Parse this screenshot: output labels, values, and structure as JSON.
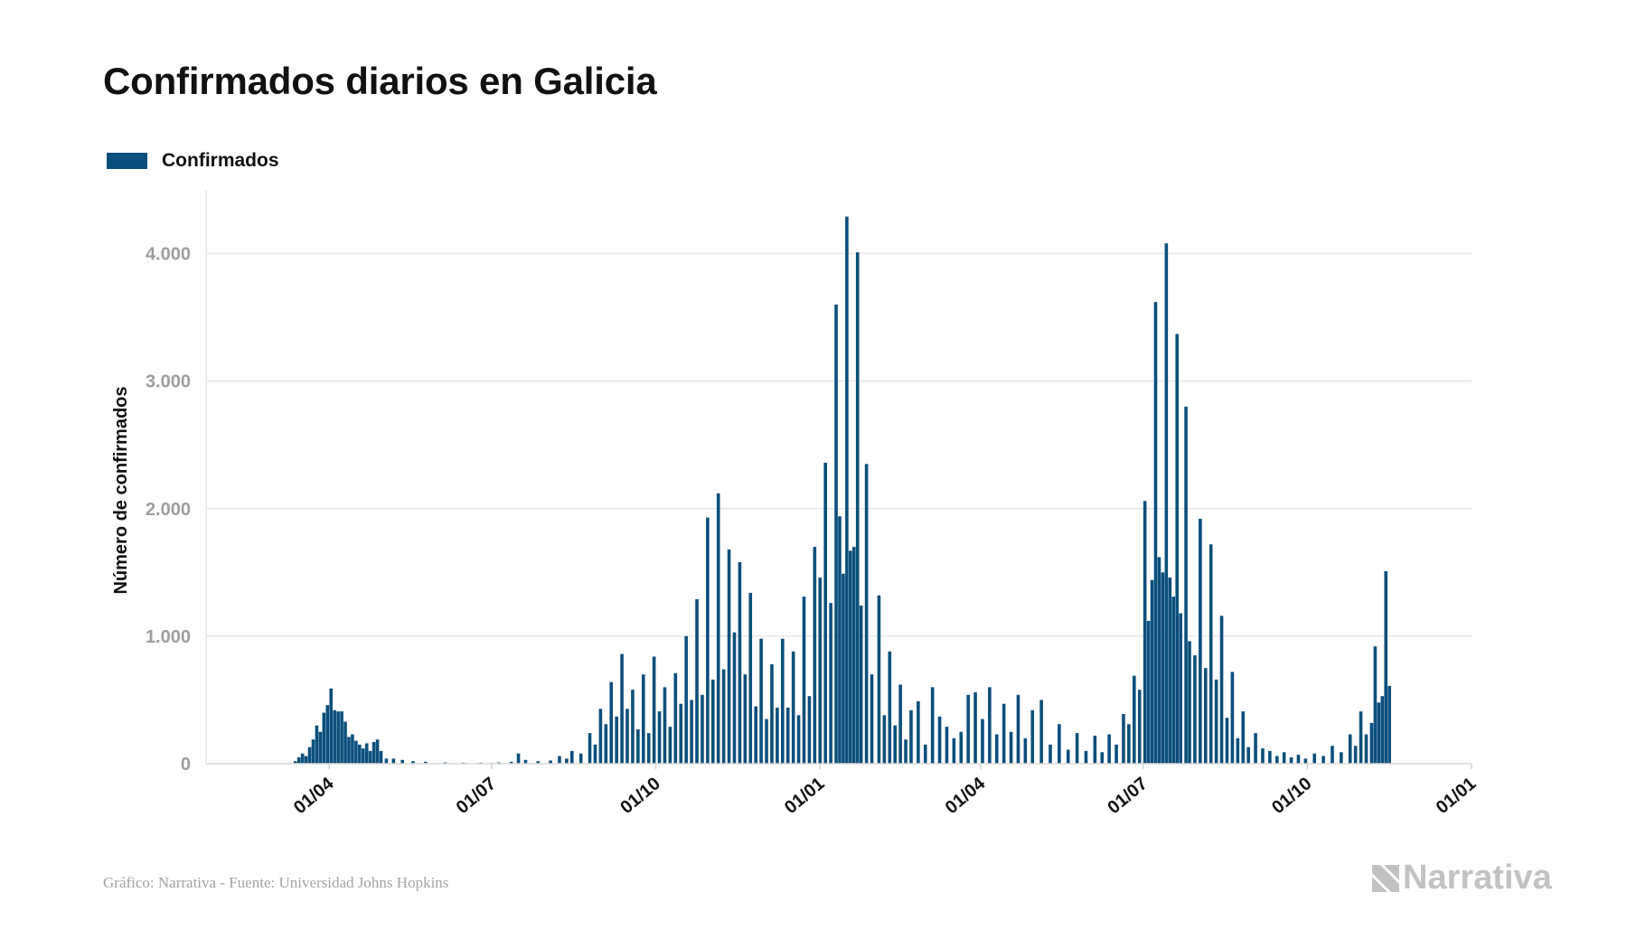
{
  "title": "Confirmados diarios en Galicia",
  "legend": {
    "label": "Confirmados",
    "color": "#0b4f7c"
  },
  "footer": {
    "source": "Gráfico: Narrativa - Fuente: Universidad Johns Hopkins"
  },
  "logo": {
    "text": "Narrativa",
    "icon": "narrativa-logo-icon"
  },
  "chart_data": {
    "type": "bar",
    "title": "Confirmados diarios en Galicia",
    "ylabel": "Número de confirmados",
    "xlabel": "",
    "ylim": [
      0,
      4500
    ],
    "yticks": [
      0,
      1000,
      2000,
      3000,
      4000
    ],
    "ytick_labels": [
      "0",
      "1.000",
      "2.000",
      "3.000",
      "4.000"
    ],
    "xlim": [
      "2020-01-23",
      "2022-01-01"
    ],
    "xticks": [
      "2020-04-01",
      "2020-07-01",
      "2020-10-01",
      "2021-01-01",
      "2021-04-01",
      "2021-07-01",
      "2021-10-01",
      "2022-01-01"
    ],
    "xtick_labels": [
      "01/04",
      "01/07",
      "01/10",
      "01/01",
      "01/04",
      "01/07",
      "01/10",
      "01/01"
    ],
    "grid": true,
    "legend_position": "top-left",
    "series": [
      {
        "name": "Confirmados",
        "color": "#0b4f7c",
        "points": [
          [
            "2020-03-10",
            5
          ],
          [
            "2020-03-13",
            20
          ],
          [
            "2020-03-15",
            50
          ],
          [
            "2020-03-17",
            80
          ],
          [
            "2020-03-19",
            60
          ],
          [
            "2020-03-21",
            130
          ],
          [
            "2020-03-23",
            190
          ],
          [
            "2020-03-25",
            300
          ],
          [
            "2020-03-27",
            250
          ],
          [
            "2020-03-29",
            400
          ],
          [
            "2020-03-31",
            460
          ],
          [
            "2020-04-02",
            590
          ],
          [
            "2020-04-04",
            420
          ],
          [
            "2020-04-06",
            410
          ],
          [
            "2020-04-08",
            410
          ],
          [
            "2020-04-10",
            330
          ],
          [
            "2020-04-12",
            210
          ],
          [
            "2020-04-14",
            230
          ],
          [
            "2020-04-16",
            180
          ],
          [
            "2020-04-18",
            150
          ],
          [
            "2020-04-20",
            120
          ],
          [
            "2020-04-22",
            160
          ],
          [
            "2020-04-24",
            100
          ],
          [
            "2020-04-26",
            170
          ],
          [
            "2020-04-28",
            190
          ],
          [
            "2020-04-30",
            100
          ],
          [
            "2020-05-03",
            40
          ],
          [
            "2020-05-07",
            40
          ],
          [
            "2020-05-12",
            30
          ],
          [
            "2020-05-18",
            20
          ],
          [
            "2020-05-25",
            15
          ],
          [
            "2020-06-05",
            10
          ],
          [
            "2020-06-15",
            8
          ],
          [
            "2020-06-25",
            8
          ],
          [
            "2020-07-05",
            10
          ],
          [
            "2020-07-12",
            15
          ],
          [
            "2020-07-16",
            80
          ],
          [
            "2020-07-20",
            30
          ],
          [
            "2020-07-27",
            20
          ],
          [
            "2020-08-03",
            25
          ],
          [
            "2020-08-08",
            60
          ],
          [
            "2020-08-12",
            40
          ],
          [
            "2020-08-15",
            100
          ],
          [
            "2020-08-20",
            80
          ],
          [
            "2020-08-25",
            240
          ],
          [
            "2020-08-28",
            150
          ],
          [
            "2020-08-31",
            430
          ],
          [
            "2020-09-03",
            310
          ],
          [
            "2020-09-06",
            640
          ],
          [
            "2020-09-09",
            370
          ],
          [
            "2020-09-12",
            860
          ],
          [
            "2020-09-15",
            430
          ],
          [
            "2020-09-18",
            580
          ],
          [
            "2020-09-21",
            270
          ],
          [
            "2020-09-24",
            700
          ],
          [
            "2020-09-27",
            240
          ],
          [
            "2020-09-30",
            840
          ],
          [
            "2020-10-03",
            410
          ],
          [
            "2020-10-06",
            600
          ],
          [
            "2020-10-09",
            290
          ],
          [
            "2020-10-12",
            710
          ],
          [
            "2020-10-15",
            470
          ],
          [
            "2020-10-18",
            1000
          ],
          [
            "2020-10-21",
            500
          ],
          [
            "2020-10-24",
            1290
          ],
          [
            "2020-10-27",
            540
          ],
          [
            "2020-10-30",
            1930
          ],
          [
            "2020-11-02",
            660
          ],
          [
            "2020-11-05",
            2120
          ],
          [
            "2020-11-08",
            740
          ],
          [
            "2020-11-11",
            1680
          ],
          [
            "2020-11-14",
            1030
          ],
          [
            "2020-11-17",
            1580
          ],
          [
            "2020-11-20",
            700
          ],
          [
            "2020-11-23",
            1340
          ],
          [
            "2020-11-26",
            450
          ],
          [
            "2020-11-29",
            980
          ],
          [
            "2020-12-02",
            350
          ],
          [
            "2020-12-05",
            780
          ],
          [
            "2020-12-08",
            440
          ],
          [
            "2020-12-11",
            980
          ],
          [
            "2020-12-14",
            440
          ],
          [
            "2020-12-17",
            880
          ],
          [
            "2020-12-20",
            380
          ],
          [
            "2020-12-23",
            1310
          ],
          [
            "2020-12-26",
            530
          ],
          [
            "2020-12-29",
            1700
          ],
          [
            "2021-01-01",
            1460
          ],
          [
            "2021-01-04",
            2360
          ],
          [
            "2021-01-07",
            1260
          ],
          [
            "2021-01-10",
            3600
          ],
          [
            "2021-01-12",
            1940
          ],
          [
            "2021-01-14",
            1490
          ],
          [
            "2021-01-16",
            4290
          ],
          [
            "2021-01-18",
            1670
          ],
          [
            "2021-01-20",
            1700
          ],
          [
            "2021-01-22",
            4010
          ],
          [
            "2021-01-24",
            1240
          ],
          [
            "2021-01-27",
            2350
          ],
          [
            "2021-01-30",
            700
          ],
          [
            "2021-02-03",
            1320
          ],
          [
            "2021-02-06",
            380
          ],
          [
            "2021-02-09",
            880
          ],
          [
            "2021-02-12",
            300
          ],
          [
            "2021-02-15",
            620
          ],
          [
            "2021-02-18",
            190
          ],
          [
            "2021-02-21",
            420
          ],
          [
            "2021-02-25",
            490
          ],
          [
            "2021-03-01",
            150
          ],
          [
            "2021-03-05",
            600
          ],
          [
            "2021-03-09",
            370
          ],
          [
            "2021-03-13",
            290
          ],
          [
            "2021-03-17",
            200
          ],
          [
            "2021-03-21",
            250
          ],
          [
            "2021-03-25",
            540
          ],
          [
            "2021-03-29",
            560
          ],
          [
            "2021-04-02",
            350
          ],
          [
            "2021-04-06",
            600
          ],
          [
            "2021-04-10",
            230
          ],
          [
            "2021-04-14",
            470
          ],
          [
            "2021-04-18",
            250
          ],
          [
            "2021-04-22",
            540
          ],
          [
            "2021-04-26",
            200
          ],
          [
            "2021-04-30",
            420
          ],
          [
            "2021-05-05",
            500
          ],
          [
            "2021-05-10",
            150
          ],
          [
            "2021-05-15",
            310
          ],
          [
            "2021-05-20",
            110
          ],
          [
            "2021-05-25",
            240
          ],
          [
            "2021-05-30",
            100
          ],
          [
            "2021-06-04",
            220
          ],
          [
            "2021-06-08",
            90
          ],
          [
            "2021-06-12",
            230
          ],
          [
            "2021-06-16",
            150
          ],
          [
            "2021-06-20",
            390
          ],
          [
            "2021-06-23",
            310
          ],
          [
            "2021-06-26",
            690
          ],
          [
            "2021-06-29",
            580
          ],
          [
            "2021-07-02",
            2060
          ],
          [
            "2021-07-04",
            1120
          ],
          [
            "2021-07-06",
            1440
          ],
          [
            "2021-07-08",
            3620
          ],
          [
            "2021-07-10",
            1620
          ],
          [
            "2021-07-12",
            1500
          ],
          [
            "2021-07-14",
            4080
          ],
          [
            "2021-07-16",
            1460
          ],
          [
            "2021-07-18",
            1310
          ],
          [
            "2021-07-20",
            3370
          ],
          [
            "2021-07-22",
            1180
          ],
          [
            "2021-07-25",
            2800
          ],
          [
            "2021-07-27",
            960
          ],
          [
            "2021-07-30",
            850
          ],
          [
            "2021-08-02",
            1920
          ],
          [
            "2021-08-05",
            750
          ],
          [
            "2021-08-08",
            1720
          ],
          [
            "2021-08-11",
            660
          ],
          [
            "2021-08-14",
            1160
          ],
          [
            "2021-08-17",
            360
          ],
          [
            "2021-08-20",
            720
          ],
          [
            "2021-08-23",
            200
          ],
          [
            "2021-08-26",
            410
          ],
          [
            "2021-08-29",
            130
          ],
          [
            "2021-09-02",
            240
          ],
          [
            "2021-09-06",
            120
          ],
          [
            "2021-09-10",
            100
          ],
          [
            "2021-09-14",
            60
          ],
          [
            "2021-09-18",
            90
          ],
          [
            "2021-09-22",
            50
          ],
          [
            "2021-09-26",
            70
          ],
          [
            "2021-09-30",
            40
          ],
          [
            "2021-10-05",
            80
          ],
          [
            "2021-10-10",
            60
          ],
          [
            "2021-10-15",
            140
          ],
          [
            "2021-10-20",
            90
          ],
          [
            "2021-10-25",
            230
          ],
          [
            "2021-10-28",
            140
          ],
          [
            "2021-10-31",
            410
          ],
          [
            "2021-11-03",
            230
          ],
          [
            "2021-11-06",
            320
          ],
          [
            "2021-11-08",
            920
          ],
          [
            "2021-11-10",
            480
          ],
          [
            "2021-11-12",
            530
          ],
          [
            "2021-11-14",
            1510
          ],
          [
            "2021-11-16",
            610
          ]
        ]
      }
    ]
  }
}
